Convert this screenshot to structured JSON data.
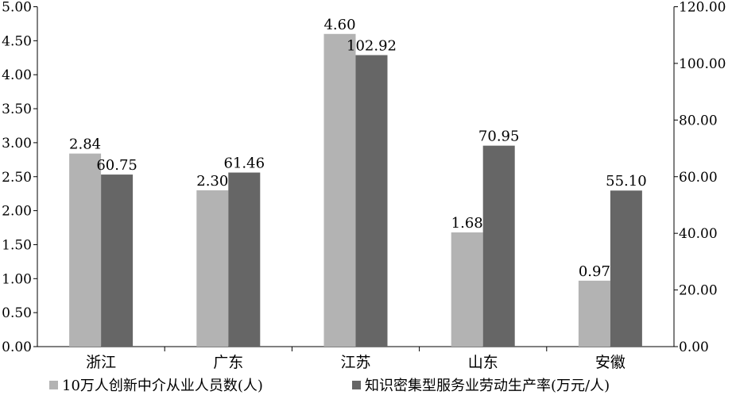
{
  "chart_data": {
    "type": "bar",
    "categories": [
      "浙江",
      "广东",
      "江苏",
      "山东",
      "安徽"
    ],
    "series": [
      {
        "name": "10万人创新中介从业人员数(人)",
        "axis": "left",
        "color": "#b3b3b3",
        "values": [
          2.84,
          2.3,
          4.6,
          1.68,
          0.97
        ],
        "labels": [
          "2.84",
          "2.30",
          "4.60",
          "1.68",
          "0.97"
        ]
      },
      {
        "name": "知识密集型服务业劳动生产率(万元/人)",
        "axis": "right",
        "color": "#666666",
        "values": [
          60.75,
          61.46,
          102.92,
          70.95,
          55.1
        ],
        "labels": [
          "60.75",
          "61.46",
          "102.92",
          "70.95",
          "55.10"
        ]
      }
    ],
    "y_left": {
      "range": [
        0,
        5
      ],
      "ticks": [
        "0.00",
        "0.50",
        "1.00",
        "1.50",
        "2.00",
        "2.50",
        "3.00",
        "3.50",
        "4.00",
        "4.50",
        "5.00"
      ]
    },
    "y_right": {
      "range": [
        0,
        120
      ],
      "ticks": [
        "0.00",
        "20.00",
        "40.00",
        "60.00",
        "80.00",
        "100.00",
        "120.00"
      ]
    },
    "grid": false,
    "legend_position": "bottom",
    "title": "",
    "xlabel": "",
    "ylabel": ""
  }
}
